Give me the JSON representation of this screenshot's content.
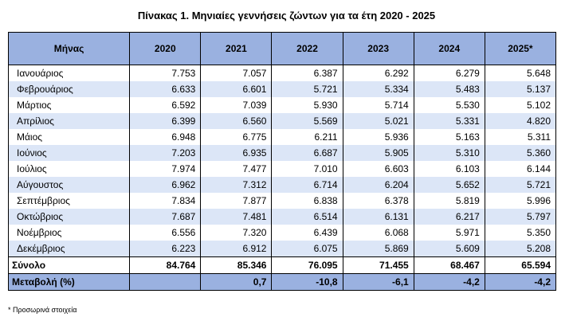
{
  "title": "Πίνακας 1. Μηνιαίες γεννήσεις ζώντων για τα έτη 2020 - 2025",
  "header": [
    "Μήνας",
    "2020",
    "2021",
    "2022",
    "2023",
    "2024",
    "2025*"
  ],
  "rows": [
    [
      "Ιανουάριος",
      "7.753",
      "7.057",
      "6.387",
      "6.292",
      "6.279",
      "5.648"
    ],
    [
      "Φεβρουάριος",
      "6.633",
      "6.601",
      "5.721",
      "5.334",
      "5.483",
      "5.137"
    ],
    [
      "Μάρτιος",
      "6.592",
      "7.039",
      "5.930",
      "5.714",
      "5.530",
      "5.102"
    ],
    [
      "Απρίλιος",
      "6.399",
      "6.560",
      "5.569",
      "5.021",
      "5.331",
      "4.820"
    ],
    [
      "Μάιος",
      "6.948",
      "6.775",
      "6.211",
      "5.936",
      "5.163",
      "5.311"
    ],
    [
      "Ιούνιος",
      "7.203",
      "6.935",
      "6.687",
      "5.905",
      "5.310",
      "5.360"
    ],
    [
      "Ιούλιος",
      "7.974",
      "7.477",
      "7.010",
      "6.603",
      "6.103",
      "6.144"
    ],
    [
      "Αύγουστος",
      "6.962",
      "7.312",
      "6.714",
      "6.204",
      "5.652",
      "5.721"
    ],
    [
      "Σεπτέμβριος",
      "7.834",
      "7.877",
      "6.838",
      "6.378",
      "5.819",
      "5.996"
    ],
    [
      "Οκτώβριος",
      "7.687",
      "7.481",
      "6.514",
      "6.131",
      "6.217",
      "5.797"
    ],
    [
      "Νοέμβριος",
      "6.556",
      "7.320",
      "6.439",
      "6.068",
      "5.971",
      "5.350"
    ],
    [
      "Δεκέμβριος",
      "6.223",
      "6.912",
      "6.075",
      "5.869",
      "5.609",
      "5.208"
    ]
  ],
  "total": [
    "Σύνολο",
    "84.764",
    "85.346",
    "76.095",
    "71.455",
    "68.467",
    "65.594"
  ],
  "change": [
    "Μεταβολή (%)",
    "",
    "0,7",
    "-10,8",
    "-6,1",
    "-4,2",
    "-4,2"
  ],
  "footnote": "* Προσωρινά στοιχεία"
}
